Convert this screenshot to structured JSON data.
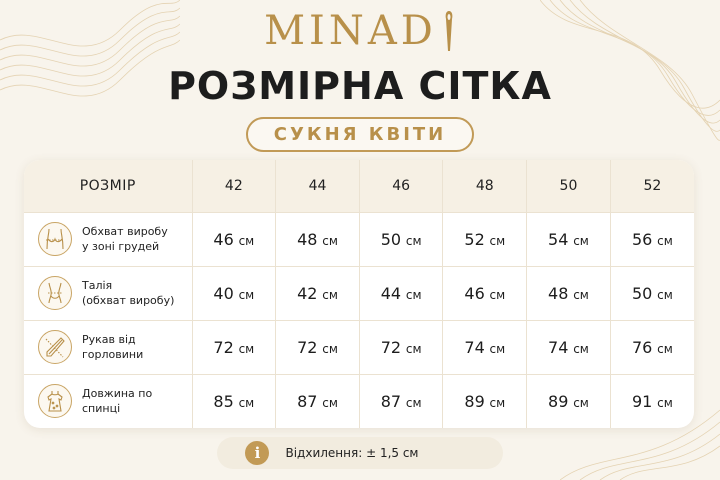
{
  "brand": {
    "logo_text": "MINAD",
    "logo_i_icon": "needle-icon",
    "logo_a_icon": "scissors-icon"
  },
  "title": "РОЗМІРНА СІТКА",
  "subtitle": "СУКНЯ КВІТИ",
  "colors": {
    "gold": "#b8904a",
    "background": "#f8f4ec",
    "header_row": "#f6f0e4"
  },
  "table": {
    "header_label": "РОЗМІР",
    "sizes": [
      "42",
      "44",
      "46",
      "48",
      "50",
      "52"
    ],
    "unit": "см",
    "rows": [
      {
        "icon": "bust-icon",
        "label_lines": [
          "Обхват виробу",
          "у зоні грудей"
        ],
        "values": [
          "46",
          "48",
          "50",
          "52",
          "54",
          "56"
        ]
      },
      {
        "icon": "waist-icon",
        "label_lines": [
          "Талія",
          "(обхват виробу)"
        ],
        "values": [
          "40",
          "42",
          "44",
          "46",
          "48",
          "50"
        ]
      },
      {
        "icon": "sleeve-icon",
        "label_lines": [
          "Рукав від горловини"
        ],
        "values": [
          "72",
          "72",
          "72",
          "74",
          "74",
          "76"
        ]
      },
      {
        "icon": "dress-icon",
        "label_lines": [
          "Довжина по спинці"
        ],
        "values": [
          "85",
          "87",
          "87",
          "89",
          "89",
          "91"
        ]
      }
    ]
  },
  "note": {
    "icon": "info-icon",
    "icon_glyph": "i",
    "text": "Відхилення: ± 1,5 см"
  }
}
